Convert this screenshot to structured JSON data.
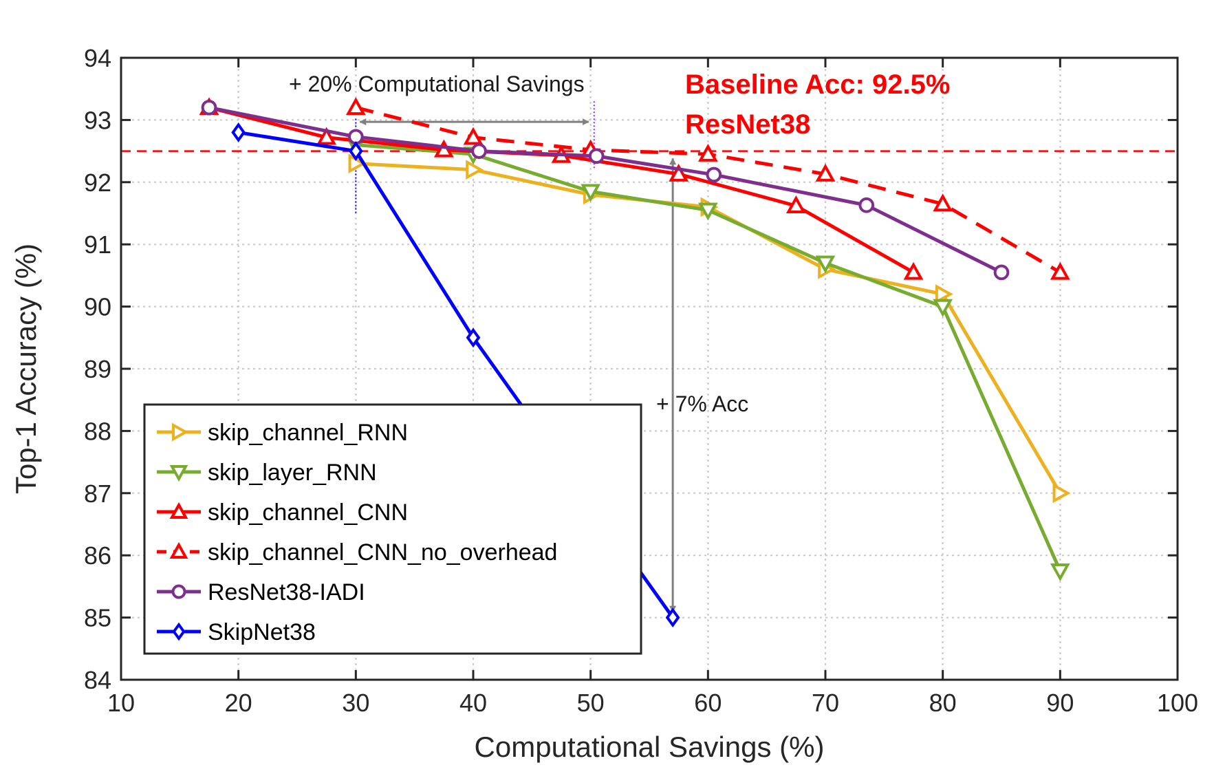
{
  "chart_data": {
    "type": "line",
    "xlabel": "Computational Savings (%)",
    "ylabel": "Top-1 Accuracy (%)",
    "xlim": [
      10,
      100
    ],
    "ylim": [
      84,
      94
    ],
    "xticks": [
      10,
      20,
      30,
      40,
      50,
      60,
      70,
      80,
      90,
      100
    ],
    "yticks": [
      84,
      85,
      86,
      87,
      88,
      89,
      90,
      91,
      92,
      93,
      94
    ],
    "grid": true,
    "legend_position": "bottom-left",
    "baseline": {
      "value": 92.5,
      "color": "#ff0000",
      "text_line1": "Baseline Acc: 92.5%",
      "text_line2": "ResNet38"
    },
    "annotations": {
      "savings_text": "+ 20% Computational Savings",
      "savings_from_x": 30,
      "savings_to_x": 50.3,
      "savings_y": 92.97,
      "acc_text": "+ 7% Acc",
      "acc_x": 57,
      "acc_from_y": 92.47,
      "acc_to_y": 85.0
    },
    "series": [
      {
        "name": "skip_channel_RNN",
        "color": "#edb120",
        "marker": "triangle-right",
        "dashed": false,
        "x": [
          30,
          40,
          50,
          60,
          70,
          80,
          90
        ],
        "y": [
          92.3,
          92.2,
          91.8,
          91.6,
          90.6,
          90.2,
          87.0
        ]
      },
      {
        "name": "skip_layer_RNN",
        "color": "#77ac30",
        "marker": "triangle-down",
        "dashed": false,
        "x": [
          30,
          40,
          50,
          60,
          70,
          80,
          90
        ],
        "y": [
          92.6,
          92.45,
          91.85,
          91.55,
          90.7,
          90.0,
          85.75
        ]
      },
      {
        "name": "skip_channel_CNN",
        "color": "#ff0000",
        "marker": "triangle-up",
        "dashed": false,
        "x": [
          17.5,
          27.5,
          37.5,
          47.5,
          57.5,
          67.5,
          77.5
        ],
        "y": [
          93.2,
          92.72,
          92.52,
          92.43,
          92.13,
          91.62,
          90.55
        ]
      },
      {
        "name": "skip_channel_CNN_no_overhead",
        "color": "#ff0000",
        "marker": "triangle-up",
        "dashed": true,
        "x": [
          30,
          40,
          50,
          60,
          70,
          80,
          90
        ],
        "y": [
          93.2,
          92.72,
          92.52,
          92.45,
          92.13,
          91.65,
          90.55
        ]
      },
      {
        "name": "ResNet38-IADI",
        "color": "#7e2f8e",
        "marker": "circle",
        "dashed": false,
        "x": [
          17.5,
          30,
          40.5,
          50.5,
          60.5,
          73.5,
          85
        ],
        "y": [
          93.2,
          92.73,
          92.5,
          92.42,
          92.12,
          91.63,
          90.55
        ]
      },
      {
        "name": "SkipNet38",
        "color": "#0000ff",
        "marker": "diamond",
        "dashed": false,
        "x": [
          20,
          30,
          40,
          57
        ],
        "y": [
          92.8,
          92.5,
          89.5,
          85.0
        ]
      }
    ]
  }
}
